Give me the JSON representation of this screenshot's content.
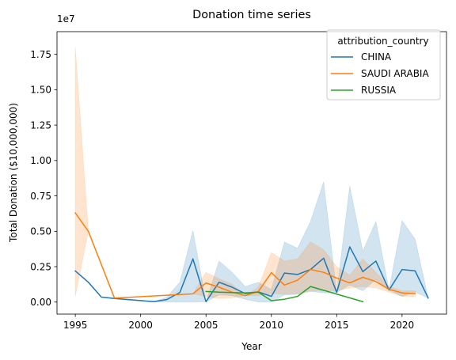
{
  "chart_data": {
    "type": "line",
    "title": "Donation time series",
    "xlabel": "Year",
    "ylabel": "Total Donation ($10,000,000)",
    "y_offset_label": "1e7",
    "xlim": [
      1993.6,
      2023.4
    ],
    "ylim": [
      -850000,
      19100000
    ],
    "x_ticks": [
      1995,
      2000,
      2005,
      2010,
      2015,
      2020
    ],
    "x_tick_labels": [
      "1995",
      "2000",
      "2005",
      "2010",
      "2015",
      "2020"
    ],
    "y_ticks": [
      0,
      2500000,
      5000000,
      7500000,
      10000000,
      12500000,
      15000000,
      17500000
    ],
    "y_tick_labels": [
      "0.00",
      "0.25",
      "0.50",
      "0.75",
      "1.00",
      "1.25",
      "1.50",
      "1.75"
    ],
    "grid": false,
    "legend": {
      "title": "attribution_country",
      "placement": "top-right"
    },
    "series": [
      {
        "name": "CHINA",
        "color": "#1f77b4",
        "x": [
          1995,
          1996,
          1997,
          1998,
          2001,
          2002,
          2003,
          2004,
          2005,
          2006,
          2007,
          2008,
          2009,
          2010,
          2011,
          2012,
          2013,
          2014,
          2015,
          2016,
          2017,
          2018,
          2019,
          2020,
          2021,
          2022
        ],
        "y": [
          2200000,
          1400000,
          350000,
          250000,
          30000,
          180000,
          680000,
          3050000,
          30000,
          1400000,
          1050000,
          600000,
          720000,
          400000,
          2050000,
          1950000,
          2300000,
          3100000,
          680000,
          3900000,
          2150000,
          2900000,
          850000,
          2300000,
          2200000,
          280000
        ],
        "ci_lower": [
          2200000,
          1400000,
          350000,
          250000,
          30000,
          0,
          0,
          0,
          30000,
          500000,
          450000,
          200000,
          0,
          0,
          500000,
          550000,
          750000,
          650000,
          680000,
          1200000,
          800000,
          1600000,
          850000,
          400000,
          700000,
          280000
        ],
        "ci_upper": [
          2200000,
          1400000,
          350000,
          250000,
          30000,
          350000,
          1400000,
          5050000,
          30000,
          2900000,
          2100000,
          1100000,
          1400000,
          900000,
          4250000,
          3800000,
          5700000,
          8500000,
          680000,
          8200000,
          3600000,
          5700000,
          850000,
          5750000,
          4450000,
          280000
        ]
      },
      {
        "name": "SAUDI ARABIA",
        "color": "#ff7f0e",
        "x": [
          1995,
          1996,
          1998,
          2004,
          2005,
          2006,
          2007,
          2008,
          2009,
          2010,
          2011,
          2012,
          2013,
          2014,
          2015,
          2016,
          2017,
          2018,
          2019,
          2020,
          2021
        ],
        "y": [
          6300000,
          5000000,
          280000,
          580000,
          1350000,
          1050000,
          700000,
          450000,
          750000,
          2080000,
          1200000,
          1550000,
          2300000,
          2100000,
          1700000,
          1350000,
          1750000,
          1450000,
          900000,
          650000,
          600000
        ],
        "ci_lower": [
          400000,
          5000000,
          280000,
          580000,
          400000,
          250000,
          300000,
          450000,
          450000,
          600000,
          550000,
          600000,
          800000,
          800000,
          800000,
          1000000,
          1100000,
          1000000,
          700000,
          400000,
          400000
        ],
        "ci_upper": [
          18000000,
          5000000,
          280000,
          580000,
          2100000,
          1650000,
          1250000,
          450000,
          1050000,
          3500000,
          2900000,
          3050000,
          4250000,
          3700000,
          2500000,
          1900000,
          3050000,
          2100000,
          1100000,
          800000,
          800000
        ]
      },
      {
        "name": "RUSSIA",
        "color": "#2ca02c",
        "x": [
          2005,
          2006,
          2008,
          2009,
          2010,
          2011,
          2012,
          2013,
          2017
        ],
        "y": [
          750000,
          700000,
          650000,
          700000,
          100000,
          200000,
          400000,
          1100000,
          30000
        ]
      }
    ]
  }
}
